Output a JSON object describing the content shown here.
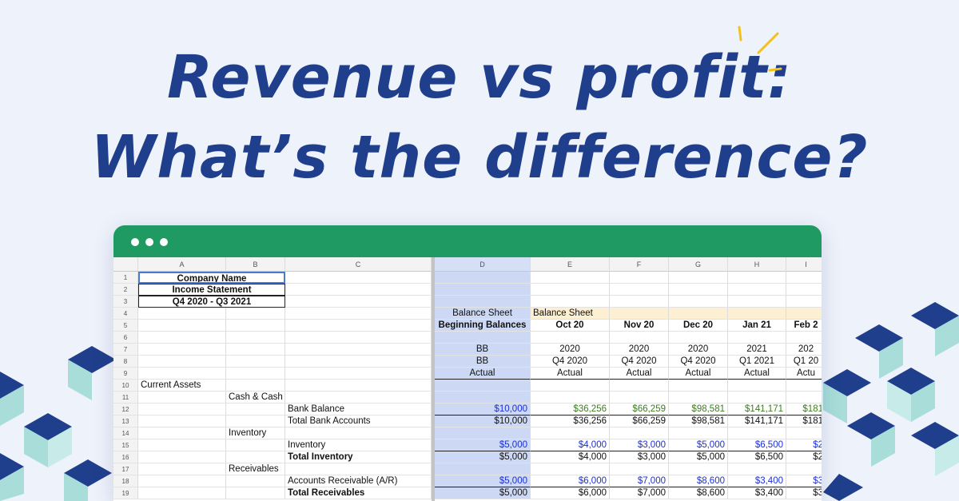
{
  "headline": {
    "line1": "Revenue vs profit:",
    "line2": "What’s the difference?"
  },
  "colors": {
    "title": "#1f3e8c",
    "window_bar": "#1f9a63",
    "highlight_col": "#cdd9f4",
    "yellow_header": "#fdf0d2",
    "input_blue": "#1b2fd6",
    "formula_green": "#3a7d1d",
    "deco_dark": "#1f3e8c",
    "deco_light": "#a8ddd9"
  },
  "window": {
    "controls": [
      "dot",
      "dot",
      "dot"
    ]
  },
  "sheet": {
    "columns": [
      "A",
      "B",
      "C",
      "D",
      "E",
      "F",
      "G",
      "H",
      "I"
    ],
    "rows": [
      {
        "n": "1",
        "A": "Company Name"
      },
      {
        "n": "2",
        "A": "Income Statement"
      },
      {
        "n": "3",
        "A": "Q4 2020 - Q3 2021"
      },
      {
        "n": "4",
        "D": "Balance Sheet",
        "E": "Balance Sheet"
      },
      {
        "n": "5",
        "D": "Beginning Balances",
        "E": "Oct 20",
        "F": "Nov 20",
        "G": "Dec 20",
        "H": "Jan 21",
        "I": "Feb 2"
      },
      {
        "n": "6"
      },
      {
        "n": "7",
        "D": "BB",
        "E": "2020",
        "F": "2020",
        "G": "2020",
        "H": "2021",
        "I": "202"
      },
      {
        "n": "8",
        "D": "BB",
        "E": "Q4 2020",
        "F": "Q4 2020",
        "G": "Q4 2020",
        "H": "Q1 2021",
        "I": "Q1 20"
      },
      {
        "n": "9",
        "D": "Actual",
        "E": "Actual",
        "F": "Actual",
        "G": "Actual",
        "H": "Actual",
        "I": "Actu"
      },
      {
        "n": "10",
        "A": "Current Assets"
      },
      {
        "n": "11",
        "B": "Cash & Cash Equivalents"
      },
      {
        "n": "12",
        "C": "Bank Balance",
        "D": "$10,000",
        "E": "$36,256",
        "F": "$66,259",
        "G": "$98,581",
        "H": "$141,171",
        "I": "$181"
      },
      {
        "n": "13",
        "C": "Total Bank Accounts",
        "D": "$10,000",
        "E": "$36,256",
        "F": "$66,259",
        "G": "$98,581",
        "H": "$141,171",
        "I": "$181"
      },
      {
        "n": "14",
        "B": "Inventory"
      },
      {
        "n": "15",
        "C": "Inventory",
        "D": "$5,000",
        "E": "$4,000",
        "F": "$3,000",
        "G": "$5,000",
        "H": "$6,500",
        "I": "$2"
      },
      {
        "n": "16",
        "C": "Total Inventory",
        "D": "$5,000",
        "E": "$4,000",
        "F": "$3,000",
        "G": "$5,000",
        "H": "$6,500",
        "I": "$2"
      },
      {
        "n": "17",
        "B": "Receivables"
      },
      {
        "n": "18",
        "C": "Accounts Receivable (A/R)",
        "D": "$5,000",
        "E": "$6,000",
        "F": "$7,000",
        "G": "$8,600",
        "H": "$3,400",
        "I": "$3"
      },
      {
        "n": "19",
        "C": "Total Receivables",
        "D": "$5,000",
        "E": "$6,000",
        "F": "$7,000",
        "G": "$8,600",
        "H": "$3,400",
        "I": "$3"
      }
    ]
  }
}
